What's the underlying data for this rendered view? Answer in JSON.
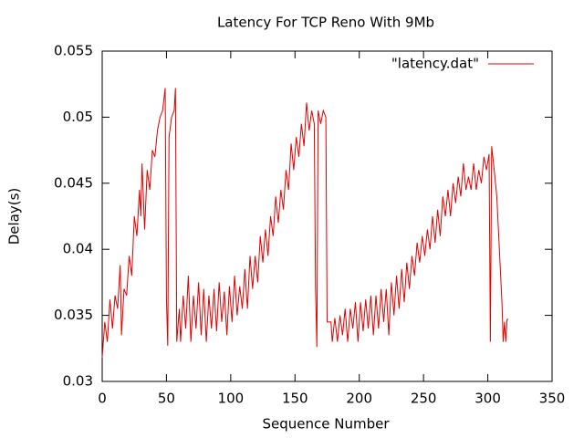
{
  "chart_data": {
    "type": "line",
    "title": "Latency For TCP Reno With 9Mb",
    "x_label": "Sequence Number",
    "y_label": "Delay(s)",
    "x": [
      0,
      2,
      4,
      6,
      8,
      10,
      12,
      14,
      15,
      17,
      19,
      21,
      23,
      25,
      27,
      29,
      30,
      31,
      33,
      35,
      37,
      39,
      41,
      43,
      45,
      47,
      49,
      50,
      51,
      52,
      54,
      56,
      57,
      58,
      60,
      61,
      63,
      65,
      67,
      69,
      71,
      73,
      75,
      77,
      79,
      81,
      83,
      85,
      87,
      89,
      91,
      93,
      95,
      97,
      99,
      101,
      103,
      105,
      107,
      109,
      111,
      113,
      115,
      117,
      119,
      121,
      123,
      125,
      127,
      129,
      131,
      133,
      135,
      137,
      139,
      141,
      143,
      145,
      147,
      149,
      151,
      153,
      155,
      157,
      159,
      161,
      163,
      165,
      166,
      167,
      168,
      170,
      172,
      174,
      175,
      176,
      178,
      179,
      181,
      183,
      185,
      187,
      189,
      191,
      193,
      195,
      197,
      199,
      201,
      203,
      205,
      207,
      209,
      211,
      213,
      215,
      217,
      219,
      221,
      223,
      225,
      227,
      229,
      231,
      233,
      235,
      237,
      239,
      241,
      243,
      245,
      247,
      249,
      251,
      253,
      255,
      257,
      259,
      261,
      263,
      265,
      267,
      269,
      271,
      273,
      275,
      277,
      279,
      281,
      283,
      285,
      287,
      289,
      291,
      293,
      295,
      297,
      299,
      301,
      302,
      303,
      305,
      307,
      309,
      311,
      312,
      313,
      314,
      315,
      316
    ],
    "series": [
      {
        "name": "\"latency.dat\"",
        "color": "#e00000",
        "values": [
          0.0318,
          0.0345,
          0.033,
          0.0362,
          0.034,
          0.0365,
          0.0355,
          0.0388,
          0.0335,
          0.037,
          0.0365,
          0.0395,
          0.038,
          0.0425,
          0.041,
          0.0445,
          0.0425,
          0.0465,
          0.0415,
          0.046,
          0.0445,
          0.0475,
          0.047,
          0.049,
          0.05,
          0.0505,
          0.0522,
          0.0362,
          0.0327,
          0.0485,
          0.05,
          0.0505,
          0.0522,
          0.033,
          0.0355,
          0.033,
          0.0365,
          0.034,
          0.038,
          0.033,
          0.0365,
          0.034,
          0.0375,
          0.0335,
          0.037,
          0.033,
          0.0365,
          0.034,
          0.037,
          0.0338,
          0.0375,
          0.0345,
          0.0368,
          0.0335,
          0.0372,
          0.0345,
          0.038,
          0.035,
          0.0372,
          0.0355,
          0.0385,
          0.0355,
          0.0395,
          0.037,
          0.0395,
          0.0375,
          0.041,
          0.039,
          0.0415,
          0.0395,
          0.0425,
          0.041,
          0.044,
          0.042,
          0.0445,
          0.043,
          0.046,
          0.0445,
          0.048,
          0.046,
          0.0485,
          0.047,
          0.0495,
          0.0478,
          0.0511,
          0.049,
          0.0505,
          0.0495,
          0.037,
          0.0326,
          0.0505,
          0.0495,
          0.0505,
          0.05,
          0.0345,
          0.0345,
          0.0345,
          0.033,
          0.0348,
          0.033,
          0.035,
          0.0335,
          0.0355,
          0.033,
          0.0355,
          0.034,
          0.036,
          0.033,
          0.036,
          0.0338,
          0.0362,
          0.034,
          0.0365,
          0.0335,
          0.0365,
          0.034,
          0.037,
          0.0345,
          0.037,
          0.0335,
          0.0375,
          0.035,
          0.038,
          0.0355,
          0.0385,
          0.036,
          0.039,
          0.037,
          0.0395,
          0.038,
          0.0405,
          0.039,
          0.041,
          0.0395,
          0.0415,
          0.04,
          0.0425,
          0.0405,
          0.043,
          0.041,
          0.044,
          0.0425,
          0.0445,
          0.0425,
          0.045,
          0.0435,
          0.0455,
          0.044,
          0.0465,
          0.0445,
          0.0455,
          0.0445,
          0.0465,
          0.0445,
          0.046,
          0.045,
          0.047,
          0.046,
          0.0472,
          0.033,
          0.0478,
          0.046,
          0.044,
          0.04,
          0.036,
          0.033,
          0.0345,
          0.033,
          0.0347,
          0.0347
        ]
      }
    ],
    "xlim": [
      0,
      350
    ],
    "xticks": [
      0,
      50,
      100,
      150,
      200,
      250,
      300,
      350
    ],
    "ylim": [
      0.03,
      0.055
    ],
    "yticks": [
      0.03,
      0.035,
      0.04,
      0.045,
      0.05,
      0.055
    ],
    "legend": "top-right"
  }
}
